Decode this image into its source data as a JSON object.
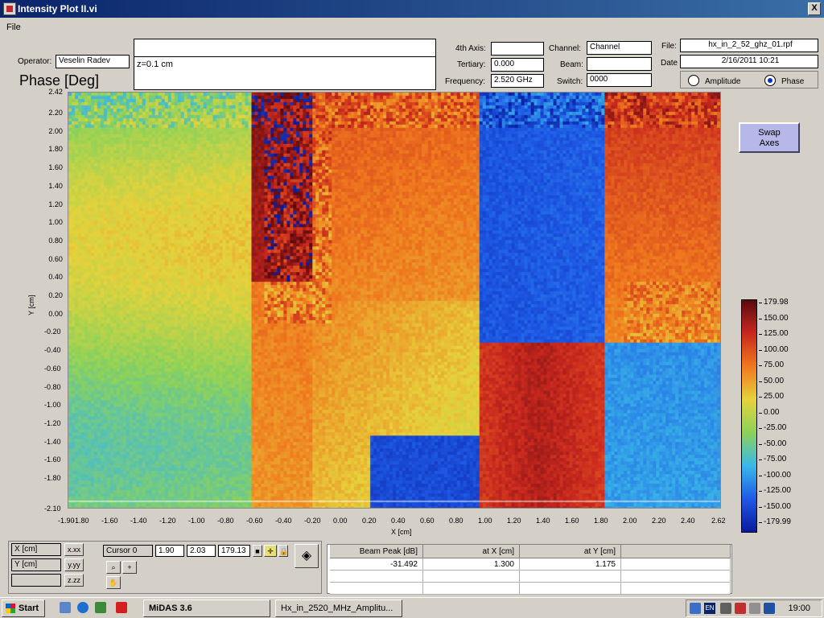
{
  "window": {
    "title": "Intensity Plot II.vi",
    "close_label": "X"
  },
  "menu": {
    "file": "File"
  },
  "header": {
    "operator_label": "Operator:",
    "operator_value": "Veselin Radev",
    "comment_top": "",
    "comment_value": "z=0.1 cm",
    "fourth_axis_label": "4th Axis:",
    "fourth_axis_value": "",
    "tertiary_label": "Tertiary:",
    "tertiary_value": "0.000",
    "frequency_label": "Frequency:",
    "frequency_value": "2.520 GHz",
    "channel_label": "Channel:",
    "channel_value": "Channel",
    "beam_label": "Beam:",
    "beam_value": "",
    "switch_label": "Switch:",
    "switch_value": "0000",
    "file_label": "File:",
    "file_value": "hx_in_2_52_ghz_01.rpf",
    "date_label": "Date",
    "date_value": "2/16/2011 10:21",
    "mode_amplitude": "Amplitude",
    "mode_phase": "Phase",
    "mode_selected": "Phase"
  },
  "plot": {
    "title": "Phase [Deg]",
    "xlabel": "X [cm]",
    "ylabel": "Y [cm]",
    "x_ticks": [
      "-1.90",
      "-1.80",
      "-1.60",
      "-1.40",
      "-1.20",
      "-1.00",
      "-0.80",
      "-0.60",
      "-0.40",
      "-0.20",
      "0.00",
      "0.20",
      "0.40",
      "0.60",
      "0.80",
      "1.00",
      "1.20",
      "1.40",
      "1.60",
      "1.80",
      "2.00",
      "2.20",
      "2.40",
      "2.62"
    ],
    "y_ticks": [
      "2.42",
      "2.20",
      "2.00",
      "1.80",
      "1.60",
      "1.40",
      "1.20",
      "1.00",
      "0.80",
      "0.60",
      "0.40",
      "0.20",
      "0.00",
      "-0.20",
      "-0.40",
      "-0.60",
      "-0.80",
      "-1.00",
      "-1.20",
      "-1.40",
      "-1.60",
      "-1.80",
      "-2.10"
    ],
    "colorbar_ticks": [
      "179.98",
      "150.00",
      "125.00",
      "100.00",
      "75.00",
      "50.00",
      "25.00",
      "0.00",
      "-25.00",
      "-50.00",
      "-75.00",
      "-100.00",
      "-125.00",
      "-150.00",
      "-179.99"
    ],
    "colors": {
      "deep_blue": "#0a1a9c",
      "blue": "#1e5ae6",
      "cyan": "#3ab8e8",
      "green": "#8cd25a",
      "yellow": "#e6d23c",
      "orange": "#f0781e",
      "red": "#c8281e"
    }
  },
  "swap_button": {
    "line1": "Swap",
    "line2": "Axes"
  },
  "cursor_panel": {
    "x_label": "X  [cm]",
    "y_label": "Y  [cm]",
    "cursor_name": "Cursor 0",
    "cursor_x": "1.90",
    "cursor_y": "2.03",
    "cursor_z": "179.13",
    "fmt_x": "x.xx",
    "fmt_y": "y.yy",
    "fmt_z": "z.zz"
  },
  "peak_table": {
    "headers": [
      "Beam Peak [dB]",
      "at X  [cm]",
      "at Y  [cm]"
    ],
    "rows": [
      [
        "-31.492",
        "1.300",
        "1.175"
      ]
    ]
  },
  "taskbar": {
    "start": "Start",
    "tasks": [
      "MiDAS 3.6",
      "Hx_in_2520_MHz_Amplitu..."
    ],
    "lang": "EN",
    "clock": "19:00"
  }
}
